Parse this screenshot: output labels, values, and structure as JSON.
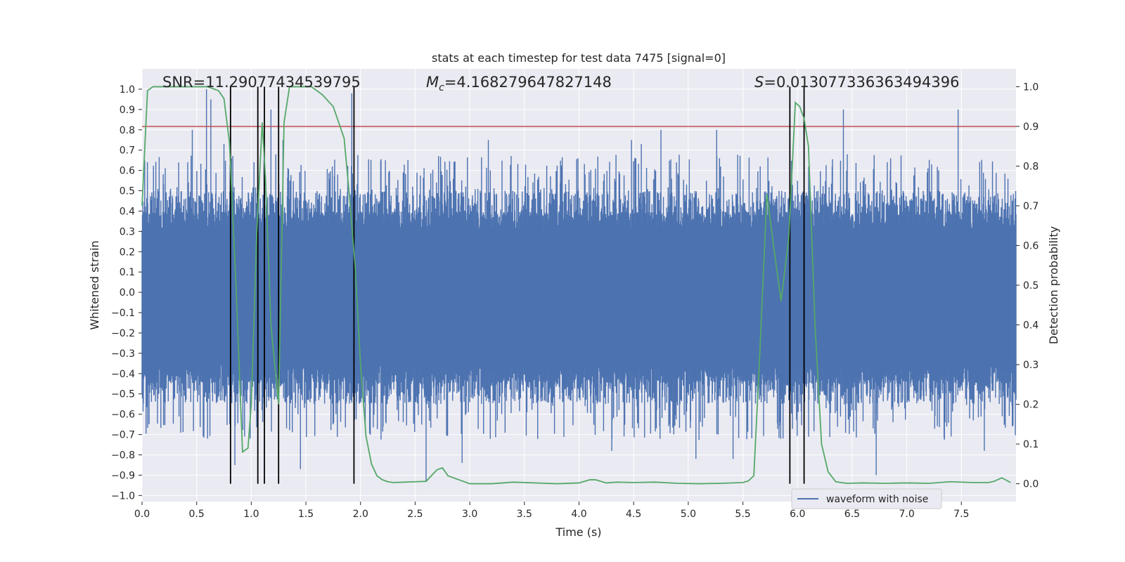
{
  "chart_data": {
    "type": "line",
    "title": "stats at each timestep for test data 7475 [signal=0]",
    "xlabel": "Time (s)",
    "ylabel_left": "Whitened strain",
    "ylabel_right": "Detection probability",
    "xlim": [
      0.0,
      8.0
    ],
    "ylim_left": [
      -1.03,
      1.1
    ],
    "ylim_right": [
      -0.045,
      1.045
    ],
    "x_ticks": [
      "0.0",
      "0.5",
      "1.0",
      "1.5",
      "2.0",
      "2.5",
      "3.0",
      "3.5",
      "4.0",
      "4.5",
      "5.0",
      "5.5",
      "6.0",
      "6.5",
      "7.0",
      "7.5"
    ],
    "x_tick_values": [
      0,
      0.5,
      1,
      1.5,
      2,
      2.5,
      3,
      3.5,
      4,
      4.5,
      5,
      5.5,
      6,
      6.5,
      7,
      7.5
    ],
    "y_left_ticks": [
      "−1.0",
      "−0.9",
      "−0.8",
      "−0.7",
      "−0.6",
      "−0.5",
      "−0.4",
      "−0.3",
      "−0.2",
      "−0.1",
      "0.0",
      "0.1",
      "0.2",
      "0.3",
      "0.4",
      "0.5",
      "0.6",
      "0.7",
      "0.8",
      "0.9",
      "1.0"
    ],
    "y_left_tick_values": [
      -1.0,
      -0.9,
      -0.8,
      -0.7,
      -0.6,
      -0.5,
      -0.4,
      -0.3,
      -0.2,
      -0.1,
      0.0,
      0.1,
      0.2,
      0.3,
      0.4,
      0.5,
      0.6,
      0.7,
      0.8,
      0.9,
      1.0
    ],
    "y_right_ticks": [
      "0.0",
      "0.1",
      "0.2",
      "0.3",
      "0.4",
      "0.5",
      "0.6",
      "0.7",
      "0.8",
      "0.9",
      "1.0"
    ],
    "y_right_tick_values": [
      0,
      0.1,
      0.2,
      0.3,
      0.4,
      0.5,
      0.6,
      0.7,
      0.8,
      0.9,
      1.0
    ],
    "annotations": {
      "snr": "SNR=11.29077434539795",
      "mc_prefix": "M",
      "mc_sub": "c",
      "mc_value": "=4.168279647827148",
      "s_prefix": "S",
      "s_value": "=0.013077336363494396"
    },
    "threshold": {
      "value": 0.9,
      "axis": "right",
      "color": "#c44e52"
    },
    "vertical_markers": [
      0.81,
      1.06,
      1.12,
      1.25,
      1.94,
      5.93,
      6.06
    ],
    "series": [
      {
        "name": "waveform with noise",
        "color": "#4c72b0",
        "axis": "left",
        "description": "noise waveform, envelope roughly ±0.45 with spikes",
        "spikes": [
          [
            0.46,
            0.8
          ],
          [
            0.59,
            1.0
          ],
          [
            0.63,
            0.95
          ],
          [
            0.6,
            -0.72
          ],
          [
            0.85,
            -0.85
          ],
          [
            1.18,
            0.9
          ],
          [
            1.45,
            -0.87
          ],
          [
            1.29,
            0.75
          ],
          [
            2.6,
            -0.93
          ],
          [
            2.93,
            -0.84
          ],
          [
            3.17,
            0.75
          ],
          [
            4.48,
            0.75
          ],
          [
            4.57,
            0.73
          ],
          [
            4.75,
            0.8
          ],
          [
            5.07,
            -0.82
          ],
          [
            5.26,
            0.8
          ],
          [
            5.41,
            -0.82
          ],
          [
            6.42,
            0.9
          ],
          [
            6.72,
            -0.9
          ],
          [
            7.47,
            0.9
          ],
          [
            7.71,
            -0.78
          ],
          [
            1.92,
            0.98
          ],
          [
            0.75,
            0.73
          ],
          [
            4.3,
            -0.78
          ]
        ]
      },
      {
        "name": "detection probability",
        "color": "#55a868",
        "axis": "right",
        "x": [
          0.0,
          0.05,
          0.1,
          0.2,
          0.4,
          0.6,
          0.7,
          0.75,
          0.8,
          0.86,
          0.92,
          0.97,
          1.0,
          1.05,
          1.1,
          1.13,
          1.18,
          1.25,
          1.3,
          1.35,
          1.45,
          1.55,
          1.65,
          1.75,
          1.85,
          1.9,
          1.95,
          2.0,
          2.05,
          2.1,
          2.15,
          2.2,
          2.25,
          2.3,
          2.4,
          2.5,
          2.6,
          2.7,
          2.75,
          2.8,
          2.9,
          3.0,
          3.2,
          3.4,
          3.6,
          3.8,
          4.0,
          4.1,
          4.15,
          4.25,
          4.35,
          4.5,
          4.7,
          4.9,
          5.1,
          5.3,
          5.5,
          5.55,
          5.6,
          5.65,
          5.72,
          5.78,
          5.85,
          5.92,
          5.98,
          6.02,
          6.06,
          6.1,
          6.16,
          6.22,
          6.28,
          6.35,
          6.45,
          6.6,
          6.8,
          7.0,
          7.2,
          7.4,
          7.6,
          7.75,
          7.8,
          7.87,
          7.95
        ],
        "values": [
          0.7,
          0.99,
          1.0,
          1.0,
          1.0,
          1.0,
          0.99,
          0.97,
          0.86,
          0.5,
          0.08,
          0.09,
          0.2,
          0.63,
          0.91,
          0.77,
          0.4,
          0.2,
          0.91,
          1.0,
          1.0,
          1.0,
          0.98,
          0.95,
          0.87,
          0.72,
          0.55,
          0.3,
          0.12,
          0.05,
          0.02,
          0.01,
          0.005,
          0.003,
          0.004,
          0.005,
          0.006,
          0.035,
          0.04,
          0.02,
          0.01,
          0.0,
          0.0,
          0.004,
          0.002,
          0.0,
          0.002,
          0.01,
          0.01,
          0.002,
          0.004,
          0.003,
          0.004,
          0.001,
          0.0,
          0.001,
          0.003,
          0.007,
          0.02,
          0.3,
          0.73,
          0.6,
          0.46,
          0.62,
          0.96,
          0.95,
          0.92,
          0.85,
          0.4,
          0.1,
          0.03,
          0.005,
          0.001,
          0.002,
          0.001,
          0.002,
          0.001,
          0.005,
          0.003,
          0.003,
          0.006,
          0.015,
          0.003
        ]
      }
    ],
    "legend": {
      "placement": "bottom-right",
      "entries": [
        "waveform with noise"
      ]
    }
  }
}
